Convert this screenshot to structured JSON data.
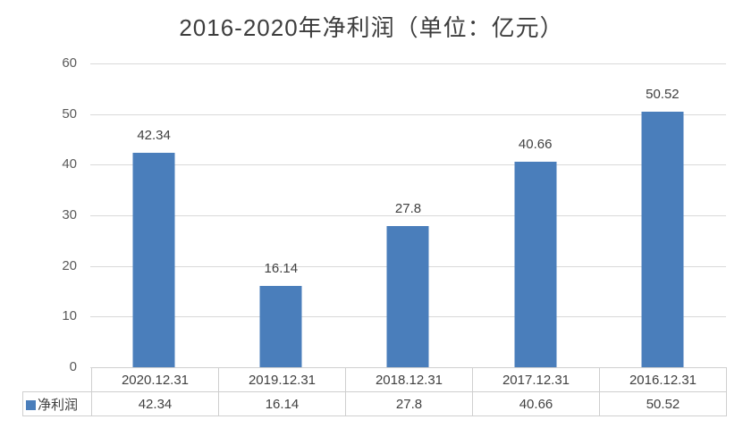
{
  "figure": {
    "title": "2016-2020年净利润（单位：亿元）"
  },
  "chart_data": {
    "type": "bar",
    "title": "2016-2020年净利润（单位：亿元）",
    "unit": "亿元",
    "categories": [
      "2020.12.31",
      "2019.12.31",
      "2018.12.31",
      "2017.12.31",
      "2016.12.31"
    ],
    "series": [
      {
        "name": "净利润",
        "values": [
          42.34,
          16.14,
          27.8,
          40.66,
          50.52
        ]
      }
    ],
    "value_labels": [
      "42.34",
      "16.14",
      "27.8",
      "40.66",
      "50.52"
    ],
    "xlabel": "",
    "ylabel": "",
    "ylim": [
      0,
      60
    ],
    "y_ticks": [
      0,
      10,
      20,
      30,
      40,
      50,
      60
    ],
    "grid": true,
    "legend_entries": [
      "净利润"
    ],
    "legend_position": "bottom-table"
  },
  "colors": {
    "bar": "#4a7ebb",
    "gridline": "#d9d9d9",
    "axis_text": "#595959",
    "label_text": "#404040",
    "table_border": "#cfcfcf",
    "background": "#ffffff"
  }
}
